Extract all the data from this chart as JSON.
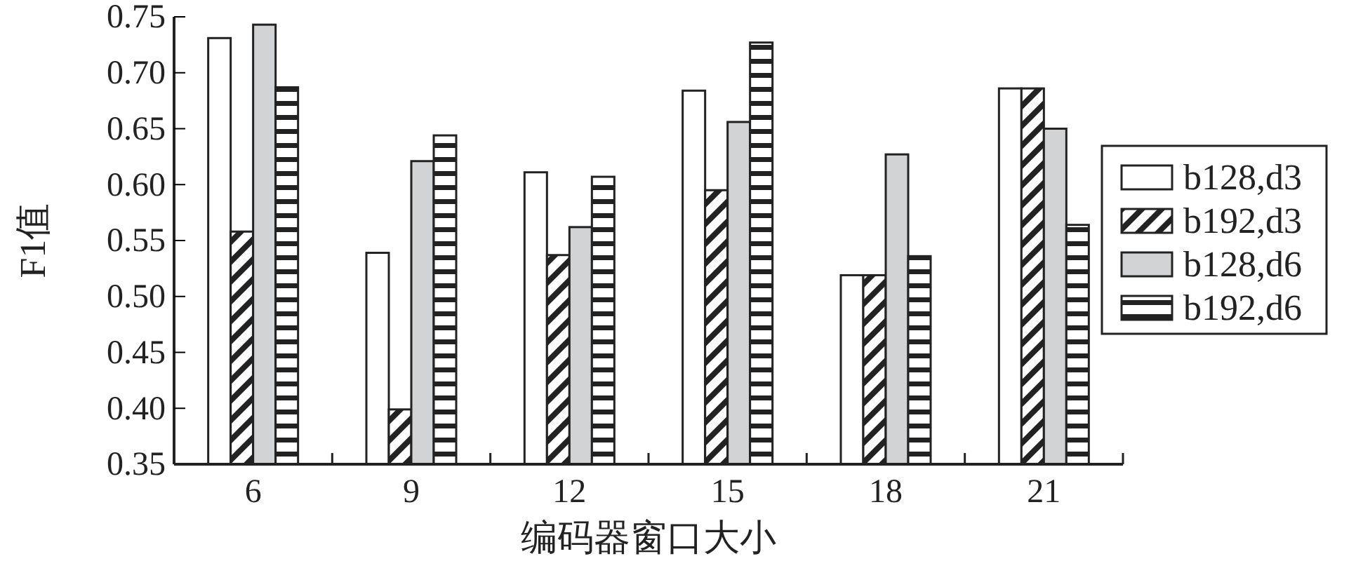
{
  "chart_data": {
    "type": "bar",
    "xlabel": "编码器窗口大小",
    "ylabel": "F1值",
    "categories": [
      "6",
      "9",
      "12",
      "15",
      "18",
      "21"
    ],
    "series": [
      {
        "name": "b128,d3",
        "color": "#ffffff",
        "values": [
          0.731,
          0.539,
          0.611,
          0.684,
          0.519,
          0.686
        ]
      },
      {
        "name": "b192,d3",
        "color": "#222222",
        "values": [
          0.558,
          0.399,
          0.537,
          0.595,
          0.519,
          0.686
        ]
      },
      {
        "name": "b128,d6",
        "color": "#d1d3d4",
        "values": [
          0.743,
          0.621,
          0.562,
          0.656,
          0.627,
          0.65
        ]
      },
      {
        "name": "b192,d6",
        "color": "#222222",
        "values": [
          0.687,
          0.644,
          0.607,
          0.727,
          0.536,
          0.564
        ]
      }
    ],
    "ylim": [
      0.35,
      0.75
    ],
    "yticks": [
      {
        "value": 0.35,
        "label": "0.35"
      },
      {
        "value": 0.4,
        "label": "0.40"
      },
      {
        "value": 0.45,
        "label": "0.45"
      },
      {
        "value": 0.5,
        "label": "0.50"
      },
      {
        "value": 0.55,
        "label": "0.55"
      },
      {
        "value": 0.6,
        "label": "0.60"
      },
      {
        "value": 0.65,
        "label": "0.65"
      },
      {
        "value": 0.7,
        "label": "0.70"
      },
      {
        "value": 0.75,
        "label": "0.75"
      }
    ],
    "grid": false,
    "legend": "right"
  }
}
